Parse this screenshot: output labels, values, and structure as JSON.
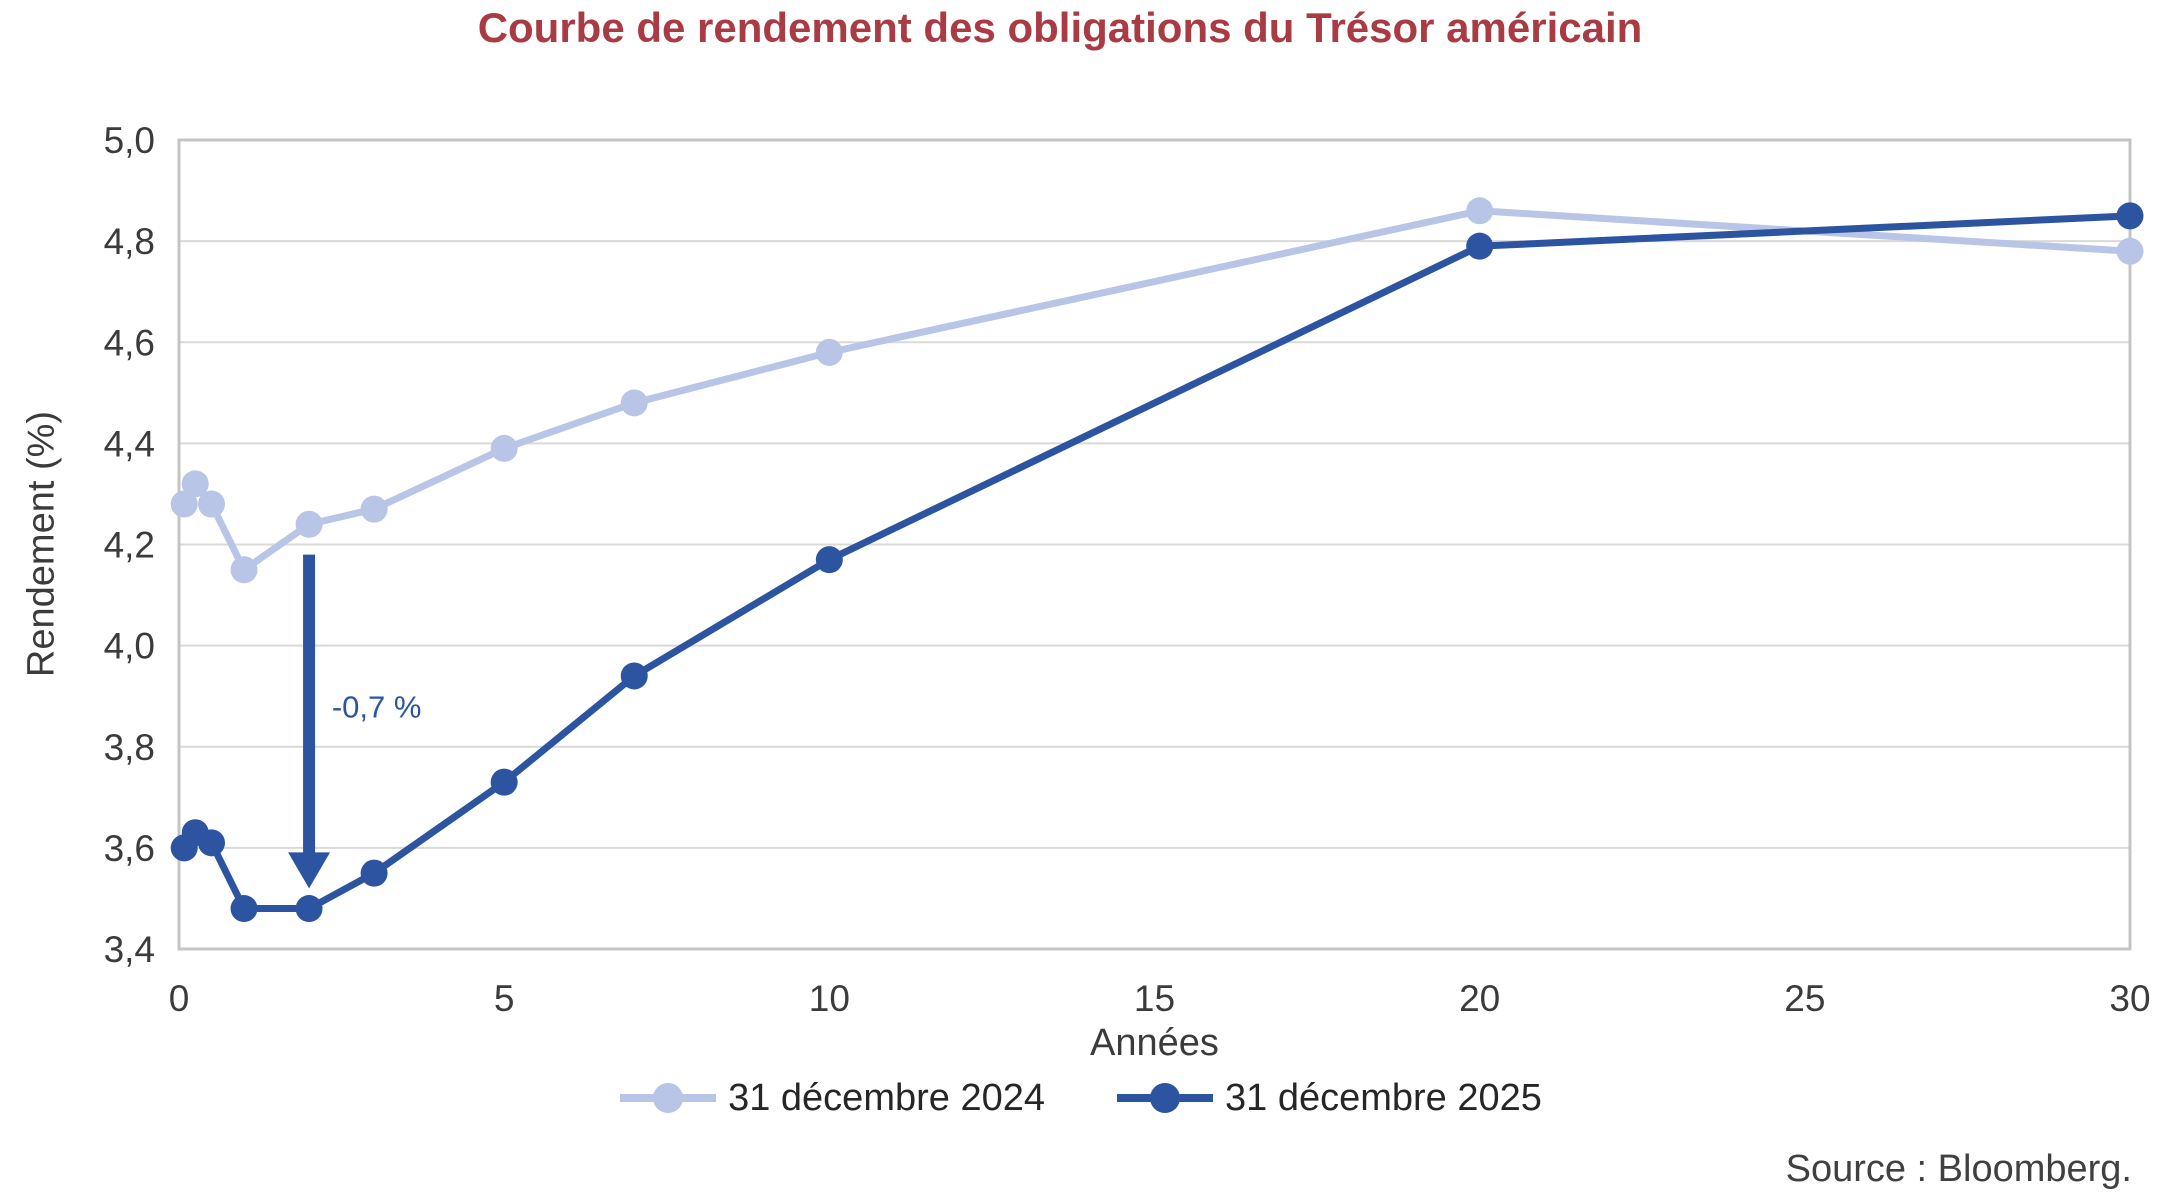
{
  "header": {
    "title": "Courbe de rendement des obligations du Trésor américain",
    "title_color": "#A83B44"
  },
  "chart_data": {
    "type": "line",
    "title": "Courbe de rendement des obligations du Trésor américain",
    "xlabel": "Années",
    "ylabel": "Rendement (%)",
    "xlim": [
      0,
      30
    ],
    "ylim": [
      3.4,
      5.0
    ],
    "grid": true,
    "legend_position": "bottom-center",
    "x_ticks": [
      {
        "value": 0,
        "label": "0"
      },
      {
        "value": 5,
        "label": "5"
      },
      {
        "value": 10,
        "label": "10"
      },
      {
        "value": 15,
        "label": "15"
      },
      {
        "value": 20,
        "label": "20"
      },
      {
        "value": 25,
        "label": "25"
      },
      {
        "value": 30,
        "label": "30"
      }
    ],
    "y_ticks": [
      {
        "value": 3.4,
        "label": "3,4"
      },
      {
        "value": 3.6,
        "label": "3,6"
      },
      {
        "value": 3.8,
        "label": "3,8"
      },
      {
        "value": 4.0,
        "label": "4,0"
      },
      {
        "value": 4.2,
        "label": "4,2"
      },
      {
        "value": 4.4,
        "label": "4,4"
      },
      {
        "value": 4.6,
        "label": "4,6"
      },
      {
        "value": 4.8,
        "label": "4,8"
      },
      {
        "value": 5.0,
        "label": "5,0"
      }
    ],
    "x": [
      0.08,
      0.25,
      0.5,
      1,
      2,
      3,
      5,
      7,
      10,
      20,
      30
    ],
    "series": [
      {
        "name": "31 décembre 2024",
        "color": "#B9C5E6",
        "values": [
          4.28,
          4.32,
          4.28,
          4.15,
          4.24,
          4.27,
          4.39,
          4.48,
          4.58,
          4.86,
          4.78
        ]
      },
      {
        "name": "31 décembre 2025",
        "color": "#2D54A1",
        "values": [
          3.6,
          3.63,
          3.61,
          3.48,
          3.48,
          3.55,
          3.73,
          3.94,
          4.17,
          4.79,
          4.85
        ]
      }
    ],
    "annotation": {
      "label": "-0,7 %",
      "color": "#2D54A1",
      "arrow_x": 2,
      "arrow_from": 4.18,
      "arrow_to": 3.52,
      "label_x": 2.35,
      "label_y": 3.88
    },
    "colors": {
      "grid": "#D9D9D9",
      "border": "#C4C4C4",
      "tick_text": "#3B3B3B"
    }
  },
  "footer": {
    "source": "Source : Bloomberg."
  }
}
